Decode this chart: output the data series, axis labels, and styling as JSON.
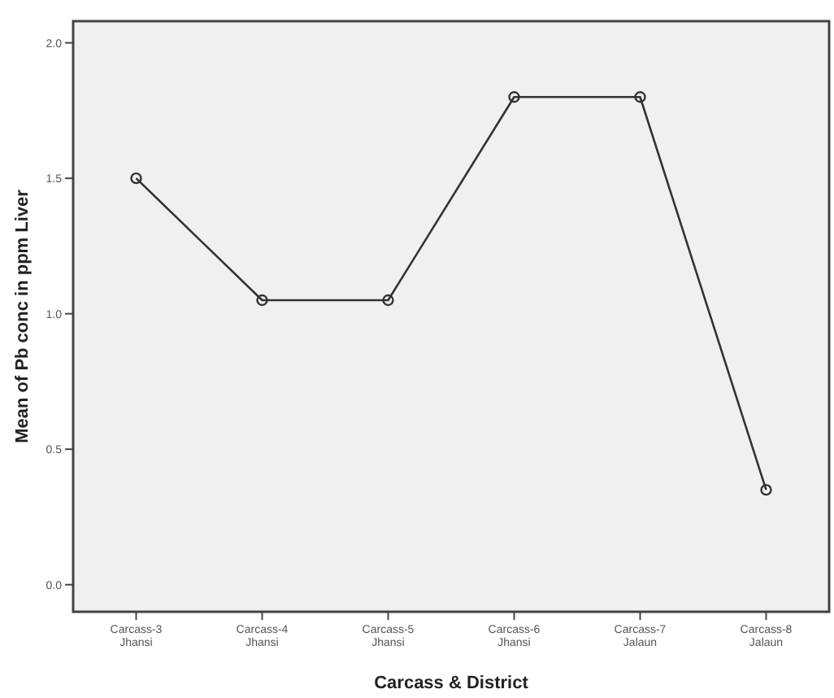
{
  "chart_data": {
    "type": "line",
    "xlabel": "Carcass & District",
    "ylabel": "Mean of Pb conc in ppm Liver",
    "categories": [
      "Carcass-3\nJhansi",
      "Carcass-4\nJhansi",
      "Carcass-5\nJhansi",
      "Carcass-6\nJhansi",
      "Carcass-7\nJalaun",
      "Carcass-8\nJalaun"
    ],
    "series": [
      {
        "color": "#333333",
        "values": [
          1.5,
          1.05,
          1.05,
          1.8,
          1.8,
          0.35
        ]
      }
    ],
    "ylim": [
      -0.1,
      2.08
    ],
    "yticks": [
      {
        "value": 0,
        "label": "0.0"
      },
      {
        "value": 0.5,
        "label": "0.5"
      },
      {
        "value": 1,
        "label": "1.0"
      },
      {
        "value": 1.5,
        "label": "1.5"
      },
      {
        "value": 2,
        "label": "2.0"
      }
    ],
    "marker": "circle",
    "grid": false
  }
}
